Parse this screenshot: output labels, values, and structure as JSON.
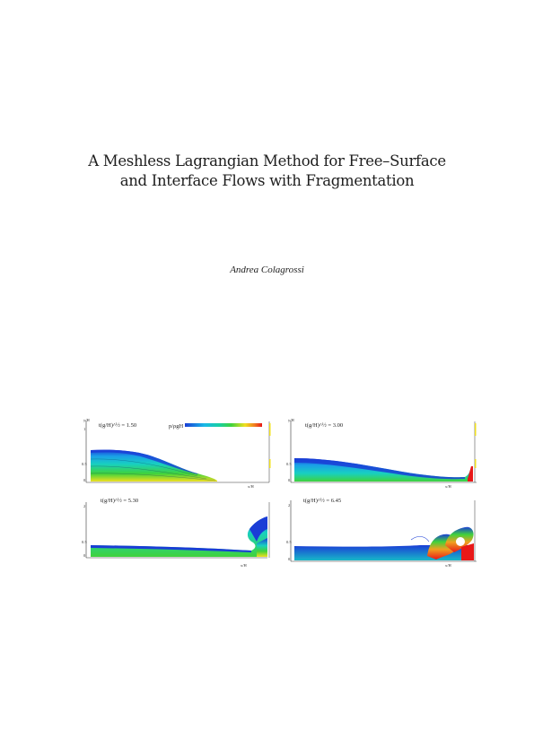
{
  "paper": {
    "title_line1": "A Meshless Lagrangian Method for Free–Surface",
    "title_line2": "and Interface Flows with Fragmentation",
    "author": "Andrea Colagrossi"
  },
  "figure": {
    "panels": [
      {
        "time_label": "t(g/H)^½ = 1.50",
        "y_axis": "y/H",
        "x_axis": "x/H",
        "has_colorbar": true,
        "colorbar_label": "p/ρgH"
      },
      {
        "time_label": "t(g/H)^½ = 3.00",
        "y_axis": "y/H",
        "x_axis": "x/H",
        "has_colorbar": false
      },
      {
        "time_label": "t(g/H)^½ = 5.30",
        "y_axis": "y/H",
        "x_axis": "x/H",
        "has_colorbar": false
      },
      {
        "time_label": "t(g/H)^½ = 6.45",
        "y_axis": "y/H",
        "x_axis": "x/H",
        "has_colorbar": false
      }
    ],
    "colors": {
      "low": "#1a3dd6",
      "mid": "#18d0c0",
      "green": "#3fd23c",
      "yellow": "#f0e020",
      "high": "#e81818"
    }
  }
}
